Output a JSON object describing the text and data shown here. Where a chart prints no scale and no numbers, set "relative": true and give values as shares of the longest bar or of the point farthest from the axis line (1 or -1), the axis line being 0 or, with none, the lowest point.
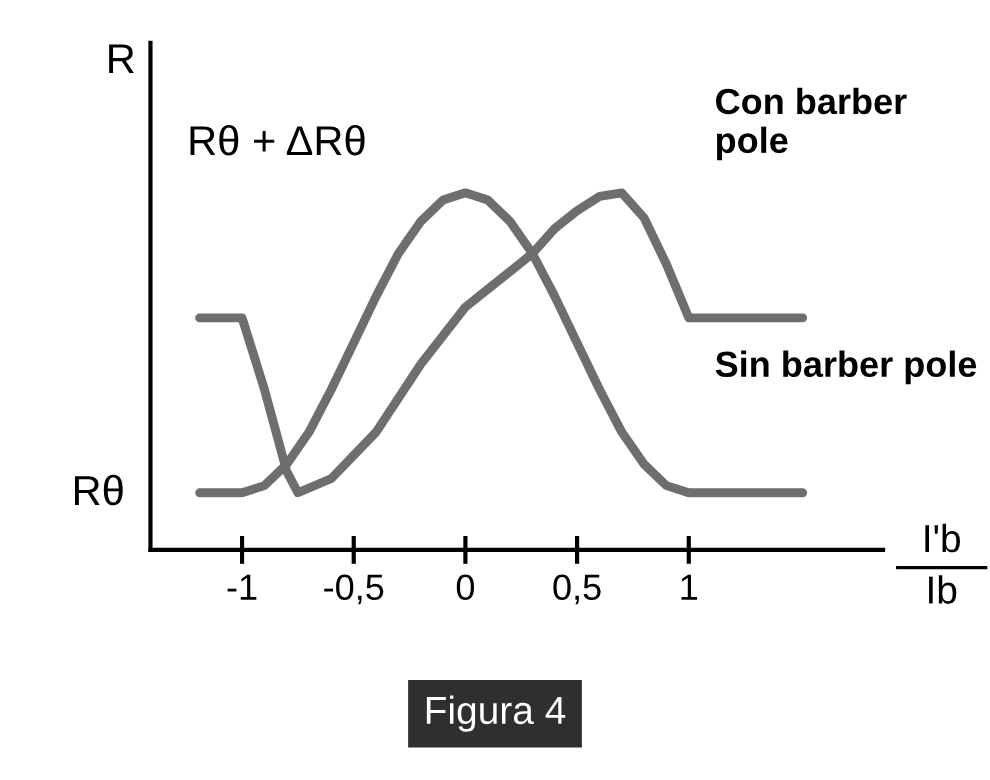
{
  "chart_data": {
    "type": "line",
    "relative": true,
    "ylabel": "R",
    "xlabel": "I'b\nIb",
    "xlim": [
      -1.41,
      1.87
    ],
    "xticks": [
      {
        "value": -1,
        "label": "-1"
      },
      {
        "value": -0.5,
        "label": "-0,5"
      },
      0,
      {
        "value": 0.5,
        "label": "0,5"
      },
      1
    ],
    "grid": false,
    "legend": false,
    "marker": "none",
    "line_style": "solid",
    "series": [
      {
        "color": "#6e6e6e",
        "x": [
          -1.19,
          -1,
          -0.9,
          -0.8,
          -0.7,
          -0.6,
          -0.5,
          -0.4,
          -0.3,
          -0.2,
          -0.1,
          0,
          0.1,
          0.2,
          0.3,
          0.4,
          0.5,
          0.6,
          0.7,
          0.8,
          0.9,
          1,
          1.51
        ],
        "values": [
          0.16,
          0.16,
          0.18,
          0.24,
          0.33,
          0.45,
          0.58,
          0.71,
          0.83,
          0.92,
          0.98,
          1.0,
          0.98,
          0.92,
          0.83,
          0.71,
          0.58,
          0.45,
          0.33,
          0.24,
          0.18,
          0.16,
          0.16
        ]
      },
      {
        "color": "#6e6e6e",
        "x": [
          -1.19,
          -1,
          -0.9,
          -0.8,
          -0.75,
          -0.6,
          -0.4,
          -0.2,
          0,
          0.1,
          0.2,
          0.3,
          0.4,
          0.5,
          0.6,
          0.7,
          0.8,
          0.9,
          1,
          1.51
        ],
        "values": [
          0.65,
          0.65,
          0.45,
          0.22,
          0.16,
          0.2,
          0.33,
          0.52,
          0.68,
          0.73,
          0.78,
          0.83,
          0.9,
          0.95,
          0.99,
          1.0,
          0.93,
          0.8,
          0.65,
          0.65
        ]
      }
    ],
    "annotations": [
      "Rθ + ΔRθ",
      "Con barber pole",
      "Sin barber pole",
      "Rθ",
      "Figura 4"
    ]
  }
}
